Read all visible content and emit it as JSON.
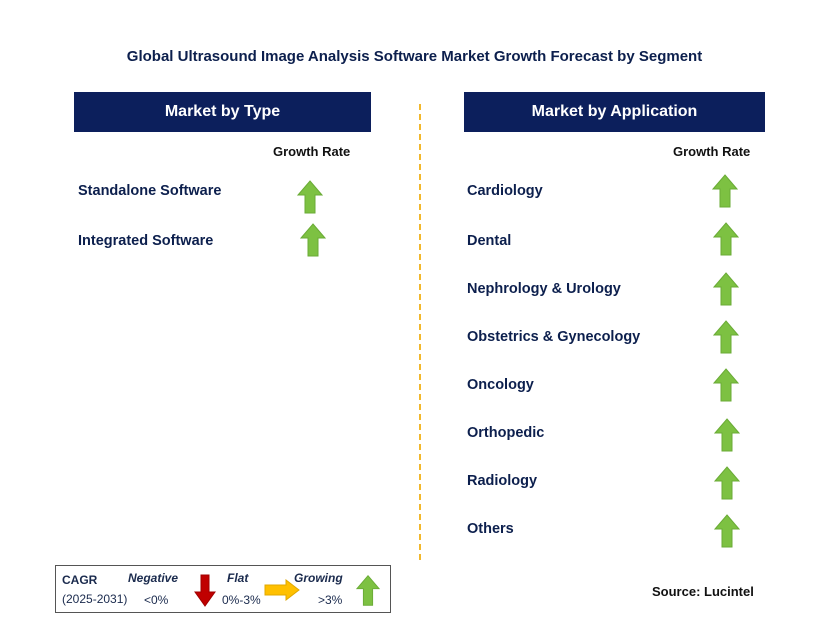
{
  "title": "Global Ultrasound Image Analysis Software Market Growth Forecast by Segment",
  "left_panel": {
    "header": "Market by Type",
    "growth_label": "Growth Rate",
    "items": [
      {
        "label": "Standalone Software",
        "trend": "growing"
      },
      {
        "label": "Integrated Software",
        "trend": "growing"
      }
    ]
  },
  "right_panel": {
    "header": "Market by Application",
    "growth_label": "Growth Rate",
    "items": [
      {
        "label": "Cardiology",
        "trend": "growing"
      },
      {
        "label": "Dental",
        "trend": "growing"
      },
      {
        "label": "Nephrology & Urology",
        "trend": "growing"
      },
      {
        "label": "Obstetrics & Gynecology",
        "trend": "growing"
      },
      {
        "label": "Oncology",
        "trend": "growing"
      },
      {
        "label": "Orthopedic",
        "trend": "growing"
      },
      {
        "label": "Radiology",
        "trend": "growing"
      },
      {
        "label": "Others",
        "trend": "growing"
      }
    ]
  },
  "legend": {
    "cagr": "CAGR",
    "period": "(2025-2031)",
    "negative_label": "Negative",
    "negative_range": "<0%",
    "flat_label": "Flat",
    "flat_range": "0%-3%",
    "growing_label": "Growing",
    "growing_range": ">3%"
  },
  "source": "Source: Lucintel",
  "colors": {
    "header_bg": "#0c1f5c",
    "growing": "#7dc142",
    "negative": "#c00000",
    "flat": "#ffc000",
    "divider": "#f2b82c"
  }
}
